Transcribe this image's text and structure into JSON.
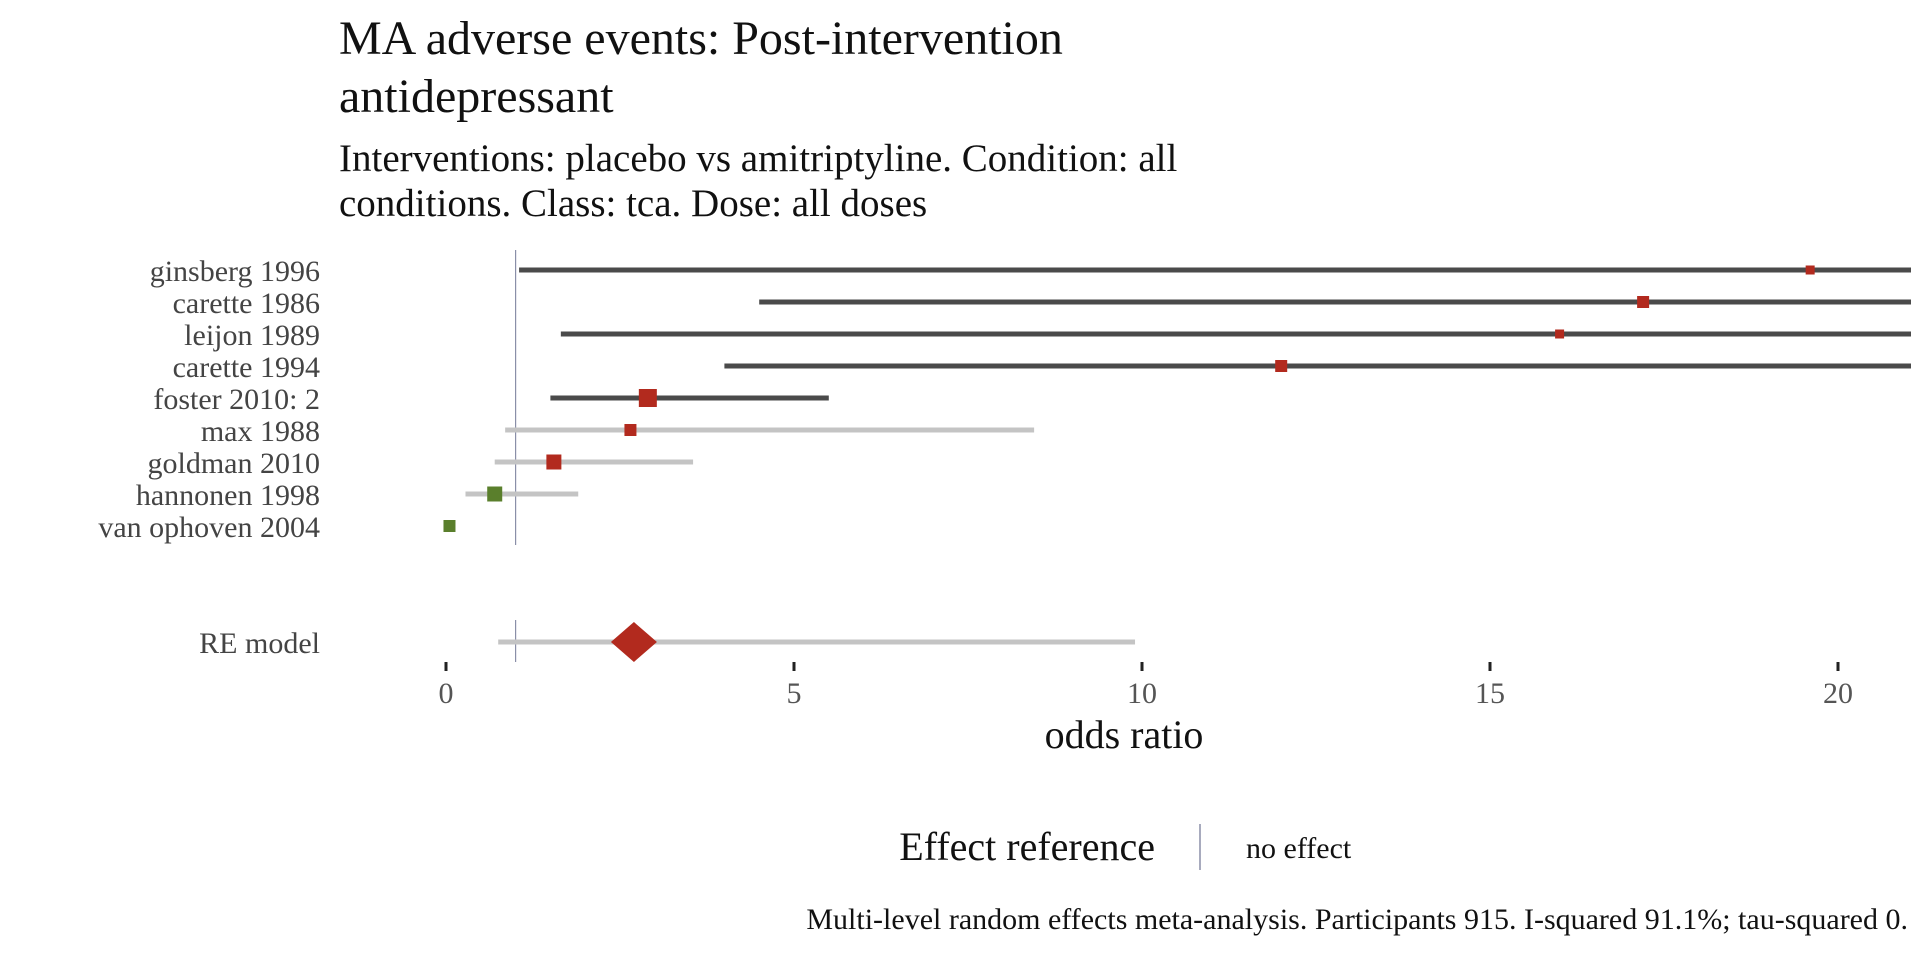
{
  "chart_data": {
    "type": "forest",
    "title": "MA adverse events: Post-intervention antidepressant",
    "subtitle": "Interventions: placebo vs amitriptyline. Condition: all conditions. Class: tca. Dose: all doses",
    "xlabel": "odds ratio",
    "xlim": [
      -0.5,
      21
    ],
    "xticks": [
      0,
      5,
      10,
      15,
      20
    ],
    "reference_line": 1,
    "colors": {
      "harm": "#b22a1e",
      "benefit": "#5a7f2c",
      "ci_strong": "#4a4a4a",
      "ci_weak": "#c4c4c4",
      "reference": "#8a8fa8"
    },
    "studies": [
      {
        "label": "ginsberg 1996",
        "or": 19.6,
        "lower": 1.05,
        "upper": 21.0,
        "weight": 1,
        "direction": "harm",
        "ci_style": "strong"
      },
      {
        "label": "carette 1986",
        "or": 17.2,
        "lower": 4.5,
        "upper": 21.0,
        "weight": 2,
        "direction": "harm",
        "ci_style": "strong"
      },
      {
        "label": "leijon 1989",
        "or": 16.0,
        "lower": 1.65,
        "upper": 21.0,
        "weight": 1,
        "direction": "harm",
        "ci_style": "strong"
      },
      {
        "label": "carette 1994",
        "or": 12.0,
        "lower": 4.0,
        "upper": 21.0,
        "weight": 2,
        "direction": "harm",
        "ci_style": "strong"
      },
      {
        "label": "foster 2010: 2",
        "or": 2.9,
        "lower": 1.5,
        "upper": 5.5,
        "weight": 4,
        "direction": "harm",
        "ci_style": "strong"
      },
      {
        "label": "max 1988",
        "or": 2.65,
        "lower": 0.85,
        "upper": 8.45,
        "weight": 2,
        "direction": "harm",
        "ci_style": "weak"
      },
      {
        "label": "goldman 2010",
        "or": 1.55,
        "lower": 0.7,
        "upper": 3.55,
        "weight": 3,
        "direction": "harm",
        "ci_style": "weak"
      },
      {
        "label": "hannonen 1998",
        "or": 0.7,
        "lower": 0.28,
        "upper": 1.9,
        "weight": 3,
        "direction": "benefit",
        "ci_style": "weak"
      },
      {
        "label": "van ophoven 2004",
        "or": 0.05,
        "lower": 0.0,
        "upper": 0.12,
        "weight": 2,
        "direction": "benefit",
        "ci_style": "strong"
      }
    ],
    "summary": {
      "label": "RE model",
      "or": 2.7,
      "lower": 0.75,
      "upper": 9.9
    },
    "legend": {
      "title": "Effect reference",
      "entry": "no effect",
      "placement": "bottom"
    },
    "caption": "Multi-level random effects meta-analysis. Participants 915. I-squared 91.1%; tau-squared 0."
  }
}
